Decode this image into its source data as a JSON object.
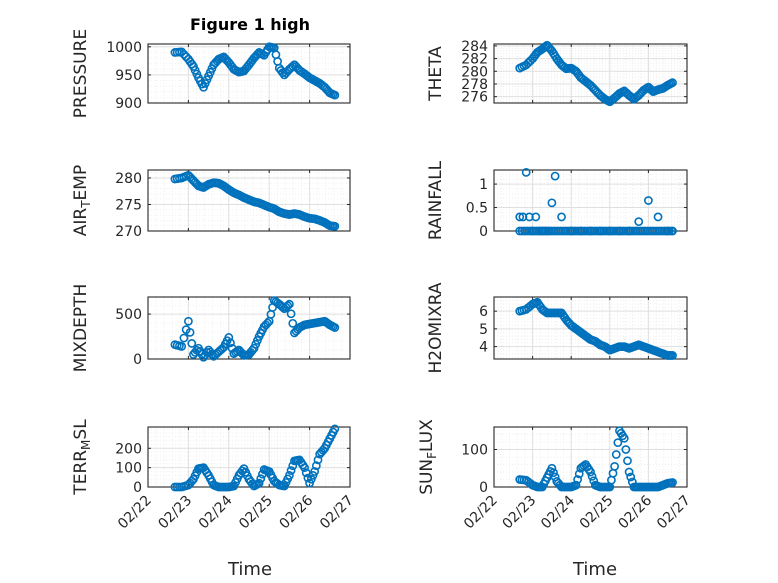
{
  "figure": {
    "title": "Figure 1 high",
    "xlabel_left": "Time",
    "xlabel_right": "Time",
    "colors": {
      "marker": "#0072BD",
      "axis": "#262626",
      "grid": "#dfdfdf",
      "grid_minor": "#efefef",
      "background": "#ffffff"
    }
  },
  "chart_data": [
    {
      "type": "scatter",
      "id": "pressure",
      "title": "Figure 1 high",
      "ylabel": "PRESSURE",
      "ylabel_parts": [
        {
          "t": "PRESSURE"
        }
      ],
      "xlabel": "",
      "ylim": [
        900,
        1005
      ],
      "yticks": [
        900,
        950,
        1000
      ],
      "xlim": [
        "02/22",
        "02/27"
      ],
      "xticks": [
        "02/22",
        "02/23",
        "02/24",
        "02/25",
        "02/26",
        "02/27"
      ],
      "show_xticklabels": false,
      "grid": true,
      "x": [
        "02/22 16:00",
        "02/22 20:00",
        "02/23 00:00",
        "02/23 03:00",
        "02/23 06:00",
        "02/23 09:00",
        "02/23 12:00",
        "02/23 15:00",
        "02/23 18:00",
        "02/23 21:00",
        "02/24 00:00",
        "02/24 03:00",
        "02/24 06:00",
        "02/24 09:00",
        "02/24 12:00",
        "02/24 15:00",
        "02/24 18:00",
        "02/24 21:00",
        "02/25 00:00",
        "02/25 03:00",
        "02/25 06:00",
        "02/25 09:00",
        "02/25 12:00",
        "02/25 15:00",
        "02/25 18:00",
        "02/25 21:00",
        "02/26 00:00",
        "02/26 03:00",
        "02/26 06:00",
        "02/26 09:00",
        "02/26 12:00",
        "02/26 15:00"
      ],
      "y": [
        990,
        991,
        978,
        965,
        945,
        928,
        948,
        968,
        978,
        982,
        972,
        960,
        955,
        957,
        968,
        980,
        990,
        985,
        1000,
        998,
        962,
        950,
        960,
        968,
        958,
        952,
        945,
        940,
        935,
        928,
        918,
        914
      ]
    },
    {
      "type": "scatter",
      "id": "theta",
      "ylabel": "THETA",
      "ylabel_parts": [
        {
          "t": "THETA"
        }
      ],
      "xlabel": "",
      "ylim": [
        275,
        284.3
      ],
      "yticks": [
        276,
        278,
        280,
        282,
        284
      ],
      "xlim": [
        "02/22",
        "02/27"
      ],
      "xticks": [
        "02/22",
        "02/23",
        "02/24",
        "02/25",
        "02/26",
        "02/27"
      ],
      "show_xticklabels": false,
      "grid": true,
      "x": [
        "02/22 16:00",
        "02/22 20:00",
        "02/23 00:00",
        "02/23 03:00",
        "02/23 06:00",
        "02/23 09:00",
        "02/23 12:00",
        "02/23 15:00",
        "02/23 18:00",
        "02/23 21:00",
        "02/24 00:00",
        "02/24 03:00",
        "02/24 06:00",
        "02/24 09:00",
        "02/24 12:00",
        "02/24 15:00",
        "02/24 18:00",
        "02/24 21:00",
        "02/25 00:00",
        "02/25 03:00",
        "02/25 06:00",
        "02/25 09:00",
        "02/25 12:00",
        "02/25 15:00",
        "02/25 18:00",
        "02/25 21:00",
        "02/26 00:00",
        "02/26 03:00",
        "02/26 06:00",
        "02/26 09:00",
        "02/26 12:00",
        "02/26 15:00"
      ],
      "y": [
        280.5,
        281,
        282,
        283,
        283.5,
        284.1,
        283.2,
        282,
        281,
        280.4,
        280.5,
        280,
        279,
        278.4,
        277.8,
        277,
        276.2,
        275.6,
        275.2,
        275.8,
        276.5,
        276.9,
        276.2,
        275.6,
        276.2,
        277,
        277.5,
        276.8,
        277.1,
        277.3,
        277.8,
        278.2
      ]
    },
    {
      "type": "scatter",
      "id": "air_temp",
      "ylabel": "AIR_TEMP",
      "ylabel_parts": [
        {
          "t": "AIR"
        },
        {
          "t": "T",
          "sub": true
        },
        {
          "t": "EMP"
        }
      ],
      "xlabel": "",
      "ylim": [
        270,
        281.5
      ],
      "yticks": [
        270,
        275,
        280
      ],
      "xlim": [
        "02/22",
        "02/27"
      ],
      "xticks": [
        "02/22",
        "02/23",
        "02/24",
        "02/25",
        "02/26",
        "02/27"
      ],
      "show_xticklabels": false,
      "grid": true,
      "x": [
        "02/22 16:00",
        "02/22 20:00",
        "02/23 00:00",
        "02/23 03:00",
        "02/23 06:00",
        "02/23 09:00",
        "02/23 12:00",
        "02/23 15:00",
        "02/23 18:00",
        "02/23 21:00",
        "02/24 00:00",
        "02/24 03:00",
        "02/24 06:00",
        "02/24 09:00",
        "02/24 12:00",
        "02/24 15:00",
        "02/24 18:00",
        "02/24 21:00",
        "02/25 00:00",
        "02/25 03:00",
        "02/25 06:00",
        "02/25 09:00",
        "02/25 12:00",
        "02/25 15:00",
        "02/25 18:00",
        "02/25 21:00",
        "02/26 00:00",
        "02/26 03:00",
        "02/26 06:00",
        "02/26 09:00",
        "02/26 12:00",
        "02/26 15:00"
      ],
      "y": [
        279.8,
        280,
        280.5,
        279.5,
        278.5,
        278.2,
        278.8,
        279.1,
        279,
        278.5,
        277.8,
        277.2,
        276.8,
        276.3,
        275.9,
        275.5,
        275.3,
        274.9,
        274.5,
        274.2,
        273.6,
        273.3,
        273.1,
        273.3,
        273.1,
        272.7,
        272.4,
        272.3,
        272.0,
        271.6,
        271.0,
        270.9
      ]
    },
    {
      "type": "scatter",
      "id": "rainfall",
      "ylabel": "RAINFALL",
      "ylabel_parts": [
        {
          "t": "RAINFALL"
        }
      ],
      "xlabel": "",
      "ylim": [
        0,
        1.3
      ],
      "yticks": [
        0,
        0.5,
        1
      ],
      "ytick_labels": [
        "0",
        "0.5",
        "1"
      ],
      "xlim": [
        "02/22",
        "02/27"
      ],
      "xticks": [
        "02/22",
        "02/23",
        "02/24",
        "02/25",
        "02/26",
        "02/27"
      ],
      "show_xticklabels": false,
      "grid": true,
      "x": [
        "02/22 16:00",
        "02/22 18:00",
        "02/22 20:00",
        "02/22 22:00",
        "02/23 00:00",
        "02/23 02:00",
        "02/23 04:00",
        "02/23 06:00",
        "02/23 08:00",
        "02/23 10:00",
        "02/23 12:00",
        "02/23 14:00",
        "02/23 18:00",
        "02/24 00:00",
        "02/24 06:00",
        "02/24 12:00",
        "02/24 18:00",
        "02/25 00:00",
        "02/25 06:00",
        "02/25 12:00",
        "02/25 18:00",
        "02/26 00:00",
        "02/26 06:00",
        "02/26 12:00",
        "02/26 15:00"
      ],
      "y": [
        0.3,
        0.3,
        1.25,
        0.3,
        0,
        0.3,
        0,
        0,
        0,
        0,
        0.6,
        1.17,
        0.3,
        0,
        0,
        0,
        0,
        0,
        0,
        0,
        0.2,
        0.65,
        0.3,
        0,
        0
      ]
    },
    {
      "type": "scatter",
      "id": "mixdepth",
      "ylabel": "MIXDEPTH",
      "ylabel_parts": [
        {
          "t": "MIXDEPTH"
        }
      ],
      "xlabel": "",
      "ylim": [
        0,
        690
      ],
      "yticks": [
        0,
        500
      ],
      "xlim": [
        "02/22",
        "02/27"
      ],
      "xticks": [
        "02/22",
        "02/23",
        "02/24",
        "02/25",
        "02/26",
        "02/27"
      ],
      "show_xticklabels": false,
      "grid": true,
      "x": [
        "02/22 16:00",
        "02/22 20:00",
        "02/23 00:00",
        "02/23 03:00",
        "02/23 06:00",
        "02/23 09:00",
        "02/23 12:00",
        "02/23 15:00",
        "02/23 18:00",
        "02/23 21:00",
        "02/24 00:00",
        "02/24 03:00",
        "02/24 06:00",
        "02/24 09:00",
        "02/24 12:00",
        "02/24 15:00",
        "02/24 18:00",
        "02/24 21:00",
        "02/25 00:00",
        "02/25 03:00",
        "02/25 06:00",
        "02/25 09:00",
        "02/25 12:00",
        "02/25 15:00",
        "02/25 18:00",
        "02/25 21:00",
        "02/26 00:00",
        "02/26 03:00",
        "02/26 06:00",
        "02/26 09:00",
        "02/26 12:00",
        "02/26 15:00"
      ],
      "y": [
        160,
        140,
        420,
        50,
        120,
        20,
        100,
        30,
        80,
        130,
        240,
        60,
        100,
        40,
        50,
        120,
        250,
        360,
        420,
        650,
        610,
        560,
        610,
        290,
        350,
        380,
        390,
        400,
        410,
        420,
        380,
        350
      ]
    },
    {
      "type": "scatter",
      "id": "h2omixra",
      "ylabel": "H2OMIXRA",
      "ylabel_parts": [
        {
          "t": "H2OMIXRA"
        }
      ],
      "xlabel": "",
      "ylim": [
        3.3,
        6.8
      ],
      "yticks": [
        4,
        5,
        6
      ],
      "xlim": [
        "02/22",
        "02/27"
      ],
      "xticks": [
        "02/22",
        "02/23",
        "02/24",
        "02/25",
        "02/26",
        "02/27"
      ],
      "show_xticklabels": false,
      "grid": true,
      "x": [
        "02/22 16:00",
        "02/22 20:00",
        "02/23 00:00",
        "02/23 03:00",
        "02/23 06:00",
        "02/23 09:00",
        "02/23 12:00",
        "02/23 15:00",
        "02/23 18:00",
        "02/23 21:00",
        "02/24 00:00",
        "02/24 03:00",
        "02/24 06:00",
        "02/24 09:00",
        "02/24 12:00",
        "02/24 15:00",
        "02/24 18:00",
        "02/24 21:00",
        "02/25 00:00",
        "02/25 03:00",
        "02/25 06:00",
        "02/25 09:00",
        "02/25 12:00",
        "02/25 15:00",
        "02/25 18:00",
        "02/25 21:00",
        "02/26 00:00",
        "02/26 03:00",
        "02/26 06:00",
        "02/26 09:00",
        "02/26 12:00",
        "02/26 15:00"
      ],
      "y": [
        6.0,
        6.1,
        6.4,
        6.5,
        6.1,
        5.9,
        5.9,
        5.9,
        5.9,
        5.5,
        5.2,
        5.0,
        4.8,
        4.6,
        4.4,
        4.3,
        4.1,
        4.0,
        3.8,
        3.9,
        4.0,
        4.0,
        3.9,
        4.0,
        4.1,
        4.0,
        3.9,
        3.8,
        3.7,
        3.6,
        3.5,
        3.5
      ]
    },
    {
      "type": "scatter",
      "id": "terr_msl",
      "ylabel": "TERR_MSL",
      "ylabel_parts": [
        {
          "t": "TERR"
        },
        {
          "t": "M",
          "sub": true
        },
        {
          "t": "SL"
        }
      ],
      "xlabel": "Time",
      "ylim": [
        0,
        310
      ],
      "yticks": [
        0,
        100,
        200
      ],
      "xlim": [
        "02/22",
        "02/27"
      ],
      "xticks": [
        "02/22",
        "02/23",
        "02/24",
        "02/25",
        "02/26",
        "02/27"
      ],
      "show_xticklabels": true,
      "grid": true,
      "x": [
        "02/22 16:00",
        "02/22 20:00",
        "02/23 00:00",
        "02/23 03:00",
        "02/23 06:00",
        "02/23 09:00",
        "02/23 12:00",
        "02/23 15:00",
        "02/23 18:00",
        "02/23 21:00",
        "02/24 00:00",
        "02/24 03:00",
        "02/24 06:00",
        "02/24 09:00",
        "02/24 12:00",
        "02/24 15:00",
        "02/24 18:00",
        "02/24 21:00",
        "02/25 00:00",
        "02/25 03:00",
        "02/25 06:00",
        "02/25 09:00",
        "02/25 12:00",
        "02/25 15:00",
        "02/25 18:00",
        "02/25 21:00",
        "02/26 00:00",
        "02/26 03:00",
        "02/26 06:00",
        "02/26 09:00",
        "02/26 12:00",
        "02/26 15:00"
      ],
      "y": [
        0,
        0,
        10,
        40,
        95,
        100,
        60,
        10,
        0,
        0,
        0,
        5,
        60,
        95,
        40,
        5,
        20,
        90,
        80,
        30,
        10,
        5,
        60,
        135,
        140,
        100,
        20,
        80,
        170,
        200,
        250,
        300
      ]
    },
    {
      "type": "scatter",
      "id": "sun_flux",
      "ylabel": "SUN_FLUX",
      "ylabel_parts": [
        {
          "t": "SUN"
        },
        {
          "t": "F",
          "sub": true
        },
        {
          "t": "LUX"
        }
      ],
      "xlabel": "Time",
      "ylim": [
        0,
        160
      ],
      "yticks": [
        0,
        100
      ],
      "xlim": [
        "02/22",
        "02/27"
      ],
      "xticks": [
        "02/22",
        "02/23",
        "02/24",
        "02/25",
        "02/26",
        "02/27"
      ],
      "show_xticklabels": true,
      "grid": true,
      "x": [
        "02/22 16:00",
        "02/22 20:00",
        "02/23 00:00",
        "02/23 03:00",
        "02/23 06:00",
        "02/23 09:00",
        "02/23 12:00",
        "02/23 15:00",
        "02/23 18:00",
        "02/23 21:00",
        "02/24 00:00",
        "02/24 03:00",
        "02/24 06:00",
        "02/24 09:00",
        "02/24 12:00",
        "02/24 15:00",
        "02/24 18:00",
        "02/24 21:00",
        "02/25 00:00",
        "02/25 03:00",
        "02/25 06:00",
        "02/25 09:00",
        "02/25 12:00",
        "02/25 15:00",
        "02/25 18:00",
        "02/25 21:00",
        "02/26 00:00",
        "02/26 03:00",
        "02/26 06:00",
        "02/26 09:00",
        "02/26 12:00",
        "02/26 15:00"
      ],
      "y": [
        20,
        18,
        5,
        0,
        0,
        25,
        50,
        15,
        0,
        0,
        0,
        5,
        50,
        60,
        40,
        5,
        0,
        0,
        0,
        55,
        150,
        130,
        40,
        0,
        0,
        0,
        0,
        0,
        0,
        5,
        10,
        12
      ]
    }
  ]
}
